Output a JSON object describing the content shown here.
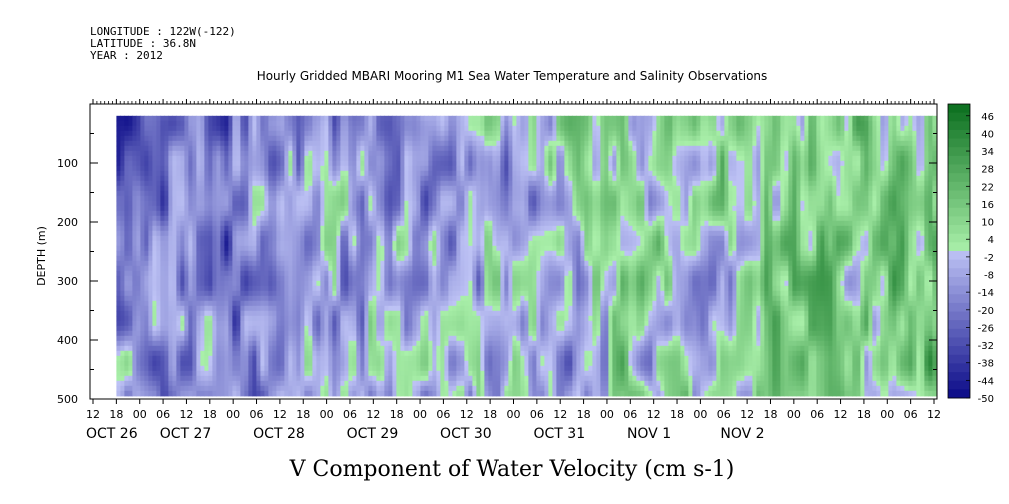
{
  "header": {
    "longitude": "LONGITUDE : 122W(-122)",
    "latitude": "LATITUDE : 36.8N",
    "year": "YEAR : 2012"
  },
  "chart_data": {
    "type": "heatmap",
    "title": "Hourly Gridded MBARI Mooring M1 Sea Water Temperature and Salinity Observations",
    "xlabel": "V Component of Water Velocity (cm s-1)",
    "ylabel": "DEPTH (m)",
    "yticks": [
      100,
      200,
      300,
      400,
      500
    ],
    "ylim": [
      500,
      0
    ],
    "data_depth_range": [
      20,
      490
    ],
    "x_hour_ticks": [
      "12",
      "18",
      "00",
      "06",
      "12",
      "18",
      "00",
      "06",
      "12",
      "18",
      "00",
      "06",
      "12",
      "18",
      "00",
      "06",
      "12",
      "18",
      "00",
      "06",
      "12",
      "18",
      "00",
      "06",
      "12",
      "18",
      "00",
      "06",
      "12",
      "18",
      "00",
      "06",
      "12",
      "18",
      "00",
      "06",
      "12"
    ],
    "x_date_labels": [
      "OCT 26",
      "OCT 27",
      "OCT 28",
      "OCT 29",
      "OCT 30",
      "OCT 31",
      "NOV  1",
      "NOV  2"
    ],
    "time_range_hours_from_oct26_12": [
      6,
      216
    ],
    "colorbar": {
      "levels": [
        "46",
        "40",
        "34",
        "28",
        "22",
        "16",
        "10",
        "4",
        "-2",
        "-8",
        "-14",
        "-20",
        "-26",
        "-32",
        "-38",
        "-44",
        "-50"
      ],
      "min": -50,
      "max": 50
    },
    "description_trend": "Mostly negative (blue) velocities Oct 26 - Oct 29, mixed and increasingly positive (green) from Oct 30 to Nov 2"
  }
}
